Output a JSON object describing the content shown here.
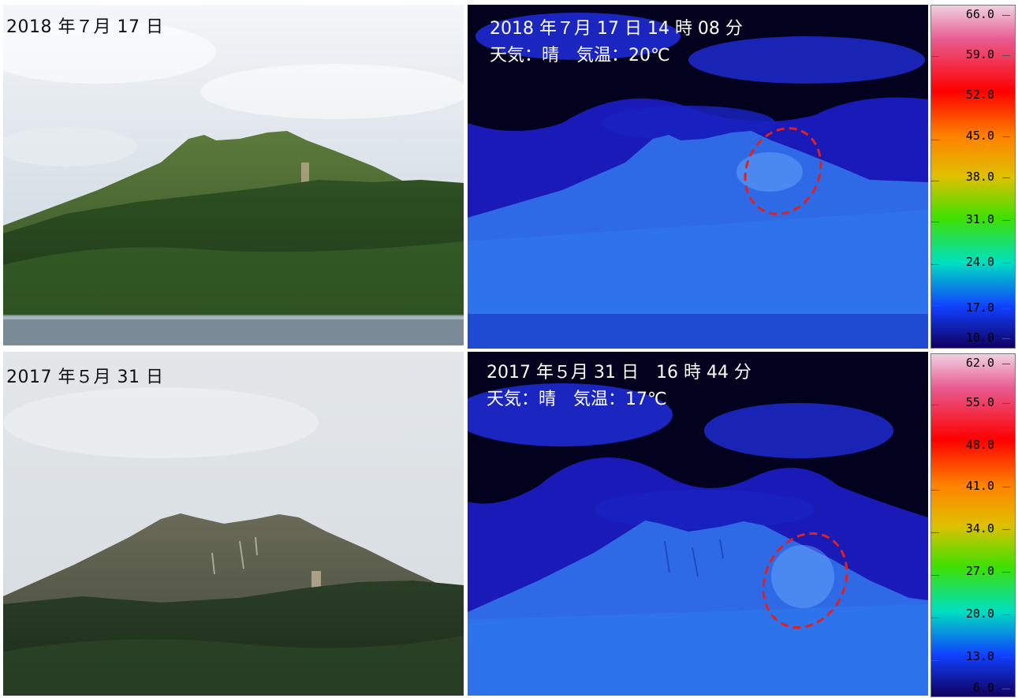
{
  "panels": {
    "photo_2018": {
      "date": "2018 年７月 17 日"
    },
    "thermal_2018": {
      "datetime": "2018 年７月 17 日 14 時 08 分",
      "weather": "天気：晴　気温：20℃",
      "scale": [
        "66.0",
        "59.0",
        "52.0",
        "45.0",
        "38.0",
        "31.0",
        "24.0",
        "17.0",
        "10.0"
      ]
    },
    "photo_2017": {
      "date": "2017 年５月 31 日"
    },
    "thermal_2017": {
      "datetime": "2017 年５月 31 日　16 時 44 分",
      "weather": "天気：晴　気温：17℃",
      "scale": [
        "62.0",
        "55.0",
        "48.0",
        "41.0",
        "34.0",
        "27.0",
        "20.0",
        "13.0",
        "6.0"
      ]
    }
  },
  "colors": {
    "scale_gradient": [
      "#f0d0e0",
      "#e85a90",
      "#ff0000",
      "#ff8000",
      "#e0c000",
      "#40e000",
      "#00e0c0",
      "#1040ff",
      "#100060"
    ],
    "highlight_ellipse": "#e02020",
    "sky_photo": "#dfe6ec",
    "thermal_sky": "#000010",
    "thermal_cloud": "#1a1ab8",
    "thermal_mountain": "#2f6ae6"
  }
}
